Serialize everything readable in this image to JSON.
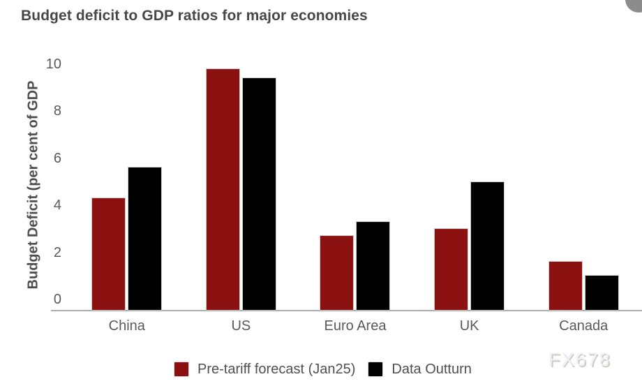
{
  "watermark": "FX678",
  "chart_data": {
    "type": "bar",
    "title": "Budget deficit to GDP ratios for major economies",
    "ylabel": "Budget Deficit (per cent of GDP",
    "xlabel": "",
    "categories": [
      "China",
      "US",
      "Euro Area",
      "UK",
      "Canada"
    ],
    "series": [
      {
        "name": "Pre-tariff forecast (Jan25)",
        "color": "#8b1010",
        "values": [
          4.3,
          9.8,
          2.7,
          3.0,
          1.6
        ]
      },
      {
        "name": "Data Outturn",
        "color": "#000000",
        "values": [
          5.6,
          9.4,
          3.3,
          5.0,
          1.0
        ]
      }
    ],
    "ylim": [
      0,
      10
    ],
    "yticks": [
      0,
      2,
      4,
      6,
      8,
      10
    ],
    "grid": false,
    "legend_position": "bottom"
  }
}
